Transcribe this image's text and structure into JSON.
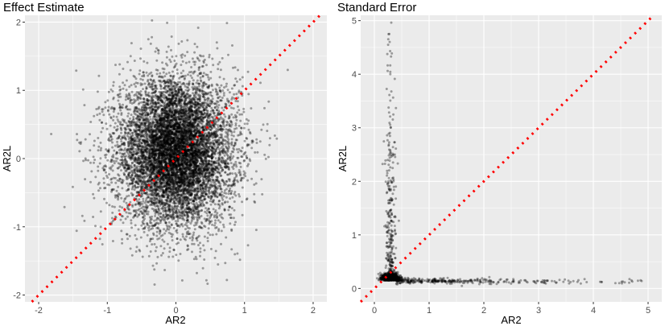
{
  "chart_data": [
    {
      "type": "scatter",
      "title": "Effect Estimate",
      "xlabel": "AR2",
      "ylabel": "AR2L",
      "xlim": [
        -2.2,
        2.2
      ],
      "ylim": [
        -2.1,
        2.1
      ],
      "x_ticks": [
        -2,
        -1,
        0,
        1,
        2
      ],
      "y_ticks": [
        -2,
        -1,
        0,
        1,
        2
      ],
      "grid": true,
      "reference_line": {
        "type": "identity",
        "slope": 1,
        "intercept": 0,
        "style": "dotted",
        "color": "#ff0000"
      },
      "point_color": "#000000",
      "point_alpha": 0.35,
      "background": "#ebebeb",
      "points_description": {
        "x_center": 0.0,
        "y_center": 0.1,
        "x_spread_sd": 0.45,
        "y_spread_sd": 0.55,
        "x_range": [
          -2.2,
          2.0
        ],
        "y_range": [
          -2.0,
          2.0
        ],
        "approx_point_count": 4000
      }
    },
    {
      "type": "scatter",
      "title": "Standard Error",
      "xlabel": "AR2",
      "ylabel": "AR2L",
      "xlim": [
        -0.25,
        5.25
      ],
      "ylim": [
        -0.25,
        5.1
      ],
      "x_ticks": [
        0,
        1,
        2,
        3,
        4,
        5
      ],
      "y_ticks": [
        0,
        1,
        2,
        3,
        4,
        5
      ],
      "grid": true,
      "reference_line": {
        "type": "identity",
        "slope": 1,
        "intercept": 0,
        "style": "dotted",
        "color": "#ff0000"
      },
      "point_color": "#000000",
      "point_alpha": 0.35,
      "background": "#ebebeb",
      "points_description": {
        "dense_cluster": {
          "x_center": 0.3,
          "y_center": 0.15
        },
        "vertical_arm": {
          "x_range": [
            0.2,
            0.45
          ],
          "y_range": [
            0.2,
            5.0
          ]
        },
        "horizontal_arm": {
          "x_range": [
            0.4,
            4.9
          ],
          "y_range": [
            0.05,
            0.25
          ]
        }
      }
    }
  ]
}
